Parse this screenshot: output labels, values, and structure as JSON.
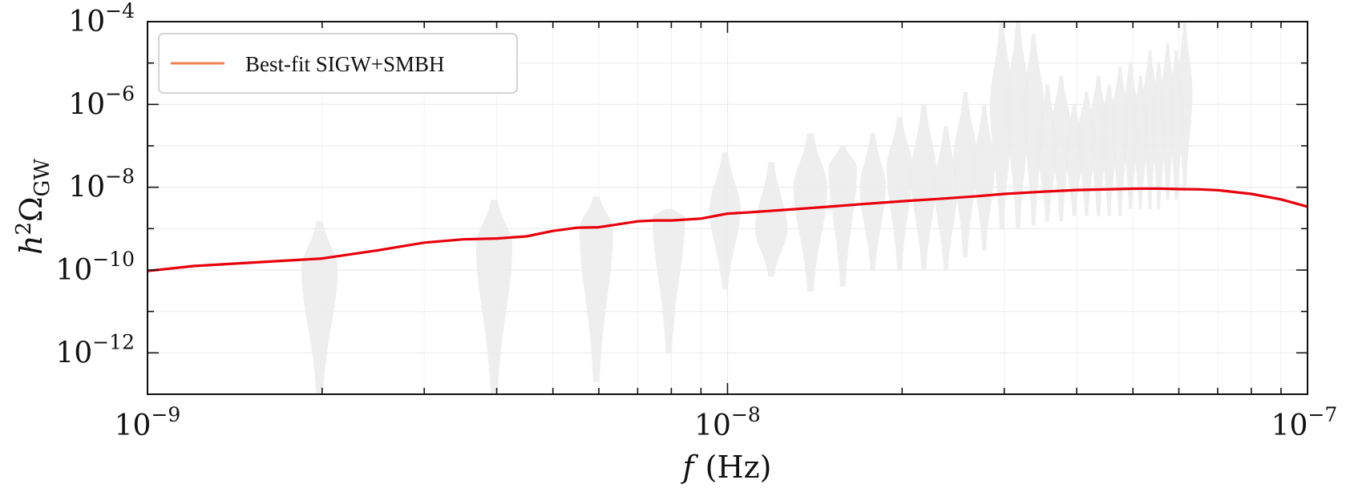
{
  "chart_data": {
    "type": "line",
    "xscale": "log",
    "yscale": "log",
    "xlim": [
      1e-09,
      1e-07
    ],
    "ylim": [
      1e-13,
      0.0001
    ],
    "xlabel_symbol": "f",
    "xlabel_unit": "(Hz)",
    "ylabel_base": "h",
    "ylabel_sup": "2",
    "ylabel_omega": "Ω",
    "ylabel_sub": "GW",
    "grid": true,
    "legend_position": "top-left",
    "x_ticks": [
      {
        "base": "10",
        "exp": "−9",
        "value": 1e-09
      },
      {
        "base": "10",
        "exp": "−8",
        "value": 1e-08
      },
      {
        "base": "10",
        "exp": "−7",
        "value": 1e-07
      }
    ],
    "y_ticks": [
      {
        "base": "10",
        "exp": "−4",
        "value": 0.0001
      },
      {
        "base": "10",
        "exp": "−6",
        "value": 1e-06
      },
      {
        "base": "10",
        "exp": "−8",
        "value": 1e-08
      },
      {
        "base": "10",
        "exp": "−10",
        "value": 1e-10
      },
      {
        "base": "10",
        "exp": "−12",
        "value": 1e-12
      }
    ],
    "series": [
      {
        "name": "Best-fit SIGW+SMBH",
        "color": "#e8000b",
        "legend_color": "#f08050",
        "x": [
          1e-09,
          1.2e-09,
          1.5e-09,
          2e-09,
          2.5e-09,
          3e-09,
          3.5e-09,
          4e-09,
          4.5e-09,
          5e-09,
          5.5e-09,
          6e-09,
          7e-09,
          7.5e-09,
          8e-09,
          9e-09,
          1e-08,
          1.1e-08,
          1.3e-08,
          1.5e-08,
          1.7e-08,
          2e-08,
          2.3e-08,
          2.7e-08,
          3e-08,
          3.5e-08,
          4e-08,
          5e-08,
          5.5e-08,
          6e-08,
          6.5e-08,
          7e-08,
          8e-08,
          9e-08,
          1e-07
        ],
        "y": [
          9.5e-11,
          1.25e-10,
          1.5e-10,
          1.9e-10,
          3e-10,
          4.6e-10,
          5.5e-10,
          5.8e-10,
          6.5e-10,
          8.8e-10,
          1.05e-09,
          1.08e-09,
          1.5e-09,
          1.58e-09,
          1.58e-09,
          1.75e-09,
          2.3e-09,
          2.5e-09,
          2.95e-09,
          3.4e-09,
          3.9e-09,
          4.6e-09,
          5.2e-09,
          6.1e-09,
          6.9e-09,
          7.8e-09,
          8.6e-09,
          9.2e-09,
          9.3e-09,
          9e-09,
          8.9e-09,
          8.5e-09,
          6.9e-09,
          5.1e-09,
          3.4e-09
        ]
      }
    ],
    "violins": [
      {
        "f": 1.98e-09,
        "top": 1.5e-09,
        "bottom": 1e-13,
        "peak": 1.1e-10,
        "halfwidth_dex": 0.028
      },
      {
        "f": 3.96e-09,
        "top": 5e-09,
        "bottom": 1e-13,
        "peak": 4e-10,
        "halfwidth_dex": 0.028
      },
      {
        "f": 5.94e-09,
        "top": 6e-09,
        "bottom": 2e-13,
        "peak": 1e-09,
        "halfwidth_dex": 0.026
      },
      {
        "f": 7.92e-09,
        "top": 3e-09,
        "bottom": 1e-12,
        "peak": 2e-09,
        "halfwidth_dex": 0.025
      },
      {
        "f": 9.9e-09,
        "top": 7e-08,
        "bottom": 3.5e-11,
        "peak": 3e-09,
        "halfwidth_dex": 0.024
      },
      {
        "f": 1.19e-08,
        "top": 4e-08,
        "bottom": 7e-11,
        "peak": 1e-09,
        "halfwidth_dex": 0.025
      },
      {
        "f": 1.39e-08,
        "top": 2e-07,
        "bottom": 3e-11,
        "peak": 1e-08,
        "halfwidth_dex": 0.026
      },
      {
        "f": 1.58e-08,
        "top": 1e-07,
        "bottom": 4e-11,
        "peak": 3e-08,
        "halfwidth_dex": 0.022
      },
      {
        "f": 1.78e-08,
        "top": 2e-07,
        "bottom": 1e-10,
        "peak": 1e-08,
        "halfwidth_dex": 0.02
      },
      {
        "f": 1.98e-08,
        "top": 5e-07,
        "bottom": 1e-10,
        "peak": 3e-08,
        "halfwidth_dex": 0.02
      },
      {
        "f": 2.18e-08,
        "top": 1e-06,
        "bottom": 1e-10,
        "peak": 2e-08,
        "halfwidth_dex": 0.02
      },
      {
        "f": 2.38e-08,
        "top": 3e-07,
        "bottom": 1e-10,
        "peak": 1e-08,
        "halfwidth_dex": 0.018
      },
      {
        "f": 2.57e-08,
        "top": 2e-06,
        "bottom": 2e-10,
        "peak": 5e-08,
        "halfwidth_dex": 0.018
      },
      {
        "f": 2.77e-08,
        "top": 1e-06,
        "bottom": 3e-10,
        "peak": 3e-08,
        "halfwidth_dex": 0.016
      },
      {
        "f": 2.97e-08,
        "top": 0.0001,
        "bottom": 1e-09,
        "peak": 1e-06,
        "halfwidth_dex": 0.018
      },
      {
        "f": 3.17e-08,
        "top": 0.0001,
        "bottom": 1e-09,
        "peak": 1e-06,
        "halfwidth_dex": 0.018
      },
      {
        "f": 3.37e-08,
        "top": 5e-05,
        "bottom": 1.2e-09,
        "peak": 1e-06,
        "halfwidth_dex": 0.016
      },
      {
        "f": 3.56e-08,
        "top": 3e-06,
        "bottom": 1.5e-09,
        "peak": 1e-07,
        "halfwidth_dex": 0.015
      },
      {
        "f": 3.76e-08,
        "top": 5e-06,
        "bottom": 1.5e-09,
        "peak": 3e-07,
        "halfwidth_dex": 0.015
      },
      {
        "f": 3.96e-08,
        "top": 1e-06,
        "bottom": 2e-09,
        "peak": 1e-07,
        "halfwidth_dex": 0.014
      },
      {
        "f": 4.16e-08,
        "top": 2e-06,
        "bottom": 2e-09,
        "peak": 2e-07,
        "halfwidth_dex": 0.014
      },
      {
        "f": 4.36e-08,
        "top": 5e-06,
        "bottom": 2e-09,
        "peak": 3e-07,
        "halfwidth_dex": 0.014
      },
      {
        "f": 4.55e-08,
        "top": 3e-06,
        "bottom": 2e-09,
        "peak": 3e-07,
        "halfwidth_dex": 0.013
      },
      {
        "f": 4.75e-08,
        "top": 8e-06,
        "bottom": 2e-09,
        "peak": 5e-07,
        "halfwidth_dex": 0.013
      },
      {
        "f": 4.95e-08,
        "top": 1e-05,
        "bottom": 3e-09,
        "peak": 5e-07,
        "halfwidth_dex": 0.013
      },
      {
        "f": 5.15e-08,
        "top": 5e-06,
        "bottom": 3e-09,
        "peak": 3e-07,
        "halfwidth_dex": 0.012
      },
      {
        "f": 5.35e-08,
        "top": 2e-05,
        "bottom": 3e-09,
        "peak": 1e-06,
        "halfwidth_dex": 0.012
      },
      {
        "f": 5.54e-08,
        "top": 1e-05,
        "bottom": 3e-09,
        "peak": 5e-07,
        "halfwidth_dex": 0.012
      },
      {
        "f": 5.74e-08,
        "top": 3e-05,
        "bottom": 5e-09,
        "peak": 1e-06,
        "halfwidth_dex": 0.012
      },
      {
        "f": 5.94e-08,
        "top": 2e-05,
        "bottom": 5e-09,
        "peak": 1e-06,
        "halfwidth_dex": 0.012
      },
      {
        "f": 6.14e-08,
        "top": 0.0001,
        "bottom": 8e-09,
        "peak": 2e-06,
        "halfwidth_dex": 0.012
      }
    ]
  }
}
